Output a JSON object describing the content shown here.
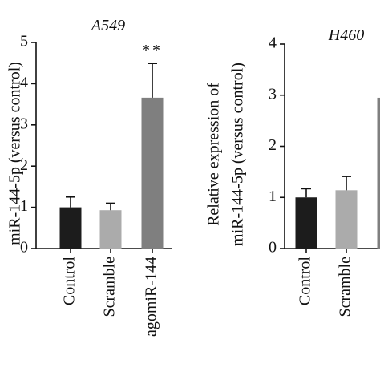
{
  "chart_data": [
    {
      "type": "bar",
      "title": "A549",
      "ylabel": [
        "miR-144-5p (versus control)"
      ],
      "categories": [
        "Control",
        "Scramble",
        "agomiR-144"
      ],
      "values": [
        1.0,
        0.93,
        3.66
      ],
      "errors": [
        0.25,
        0.17,
        0.83
      ],
      "colors": [
        "#1c1c1c",
        "#ababab",
        "#7f7f7f"
      ],
      "annotation": "**",
      "ylim": [
        0,
        5
      ],
      "yticks": [
        0,
        1,
        2,
        3,
        4,
        5
      ]
    },
    {
      "type": "bar",
      "title": "H460",
      "ylabel": [
        "Relative expression of",
        "miR-144-5p (versus control)"
      ],
      "categories": [
        "Control",
        "Scramble",
        null
      ],
      "values": [
        1.0,
        1.14,
        2.95
      ],
      "errors": [
        0.17,
        0.27,
        null
      ],
      "colors": [
        "#1c1c1c",
        "#ababab",
        "#7f7f7f"
      ],
      "ylim": [
        0,
        4
      ],
      "yticks": [
        0,
        1,
        2,
        3,
        4
      ]
    }
  ]
}
